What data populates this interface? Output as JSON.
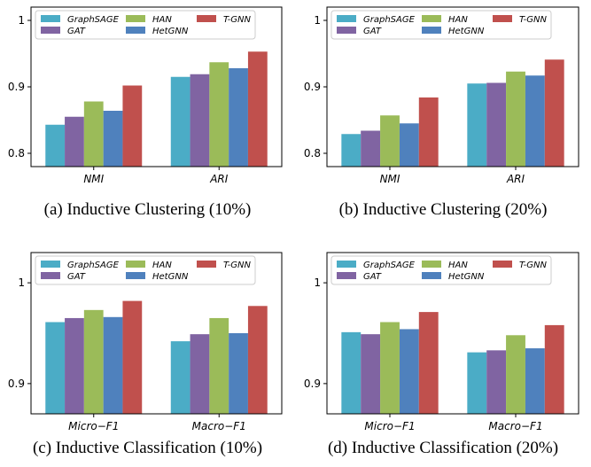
{
  "chart_data": [
    {
      "type": "bar",
      "caption": "(a) Inductive Clustering (10%)",
      "categories": [
        "NMI",
        "ARI"
      ],
      "series": [
        {
          "name": "GraphSAGE",
          "color": "#4bacc6",
          "values": [
            0.843,
            0.915
          ]
        },
        {
          "name": "GAT",
          "color": "#8064a2",
          "values": [
            0.855,
            0.919
          ]
        },
        {
          "name": "HAN",
          "color": "#9bbb59",
          "values": [
            0.878,
            0.937
          ]
        },
        {
          "name": "HetGNN",
          "color": "#4f81bd",
          "values": [
            0.864,
            0.928
          ]
        },
        {
          "name": "T-GNN",
          "color": "#c0504d",
          "values": [
            0.902,
            0.953
          ]
        }
      ],
      "ylim": [
        0.78,
        1.02
      ],
      "yticks": [
        0.8,
        0.9,
        1
      ],
      "ytick_labels": [
        "0.8",
        "0.9",
        "1"
      ],
      "legend": "top-left",
      "grid": false
    },
    {
      "type": "bar",
      "caption": "(b) Inductive Clustering (20%)",
      "categories": [
        "NMI",
        "ARI"
      ],
      "series": [
        {
          "name": "GraphSAGE",
          "color": "#4bacc6",
          "values": [
            0.829,
            0.905
          ]
        },
        {
          "name": "GAT",
          "color": "#8064a2",
          "values": [
            0.834,
            0.906
          ]
        },
        {
          "name": "HAN",
          "color": "#9bbb59",
          "values": [
            0.857,
            0.923
          ]
        },
        {
          "name": "HetGNN",
          "color": "#4f81bd",
          "values": [
            0.845,
            0.917
          ]
        },
        {
          "name": "T-GNN",
          "color": "#c0504d",
          "values": [
            0.884,
            0.941
          ]
        }
      ],
      "ylim": [
        0.78,
        1.02
      ],
      "yticks": [
        0.8,
        0.9,
        1
      ],
      "ytick_labels": [
        "0.8",
        "0.9",
        "1"
      ],
      "legend": "top-left",
      "grid": false
    },
    {
      "type": "bar",
      "caption": "(c) Inductive Classification (10%)",
      "categories": [
        "Micro−F1",
        "Macro−F1"
      ],
      "series": [
        {
          "name": "GraphSAGE",
          "color": "#4bacc6",
          "values": [
            0.961,
            0.942
          ]
        },
        {
          "name": "GAT",
          "color": "#8064a2",
          "values": [
            0.965,
            0.949
          ]
        },
        {
          "name": "HAN",
          "color": "#9bbb59",
          "values": [
            0.973,
            0.965
          ]
        },
        {
          "name": "HetGNN",
          "color": "#4f81bd",
          "values": [
            0.966,
            0.95
          ]
        },
        {
          "name": "T-GNN",
          "color": "#c0504d",
          "values": [
            0.982,
            0.977
          ]
        }
      ],
      "ylim": [
        0.87,
        1.03
      ],
      "yticks": [
        0.9,
        1
      ],
      "ytick_labels": [
        "0.9",
        "1"
      ],
      "legend": "top-left",
      "grid": false
    },
    {
      "type": "bar",
      "caption": "(d) Inductive Classification (20%)",
      "categories": [
        "Micro−F1",
        "Macro−F1"
      ],
      "series": [
        {
          "name": "GraphSAGE",
          "color": "#4bacc6",
          "values": [
            0.951,
            0.931
          ]
        },
        {
          "name": "GAT",
          "color": "#8064a2",
          "values": [
            0.949,
            0.933
          ]
        },
        {
          "name": "HAN",
          "color": "#9bbb59",
          "values": [
            0.961,
            0.948
          ]
        },
        {
          "name": "HetGNN",
          "color": "#4f81bd",
          "values": [
            0.954,
            0.935
          ]
        },
        {
          "name": "T-GNN",
          "color": "#c0504d",
          "values": [
            0.971,
            0.958
          ]
        }
      ],
      "ylim": [
        0.87,
        1.03
      ],
      "yticks": [
        0.9,
        1
      ],
      "ytick_labels": [
        "0.9",
        "1"
      ],
      "legend": "top-left",
      "grid": false
    }
  ]
}
